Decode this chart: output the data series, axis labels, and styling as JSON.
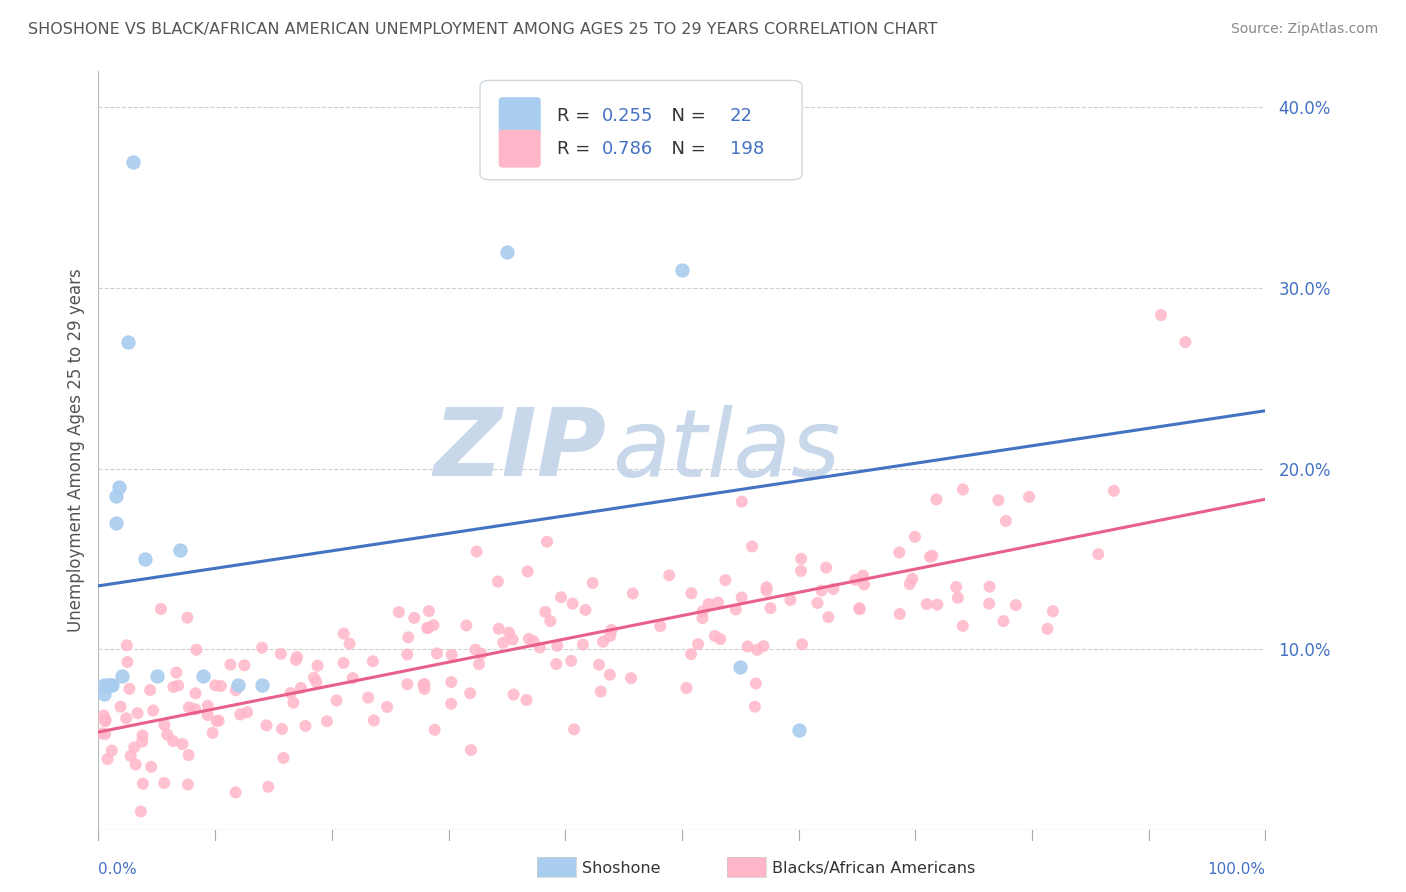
{
  "title": "SHOSHONE VS BLACK/AFRICAN AMERICAN UNEMPLOYMENT AMONG AGES 25 TO 29 YEARS CORRELATION CHART",
  "source": "Source: ZipAtlas.com",
  "ylabel": "Unemployment Among Ages 25 to 29 years",
  "xlim": [
    0.0,
    1.0
  ],
  "ylim": [
    0.0,
    0.42
  ],
  "legend_shoshone_R": "0.255",
  "legend_shoshone_N": "22",
  "legend_black_R": "0.786",
  "legend_black_N": "198",
  "shoshone_color": "#A8CDEF",
  "shoshone_line_color": "#4472C4",
  "black_color": "#FFB6C8",
  "black_line_color": "#E8608A",
  "watermark_zip": "ZIP",
  "watermark_atlas": "atlas",
  "watermark_color": "#C8D8EA",
  "background_color": "#FFFFFF",
  "title_color": "#555555",
  "source_color": "#888888",
  "tick_color": "#4472C4",
  "label_color": "#555555",
  "shoshone_trend_x0": 0.0,
  "shoshone_trend_y0": 0.135,
  "shoshone_trend_x1": 1.0,
  "shoshone_trend_y1": 0.232,
  "black_trend_x0": 0.0,
  "black_trend_y0": 0.054,
  "black_trend_x1": 1.0,
  "black_trend_y1": 0.183
}
